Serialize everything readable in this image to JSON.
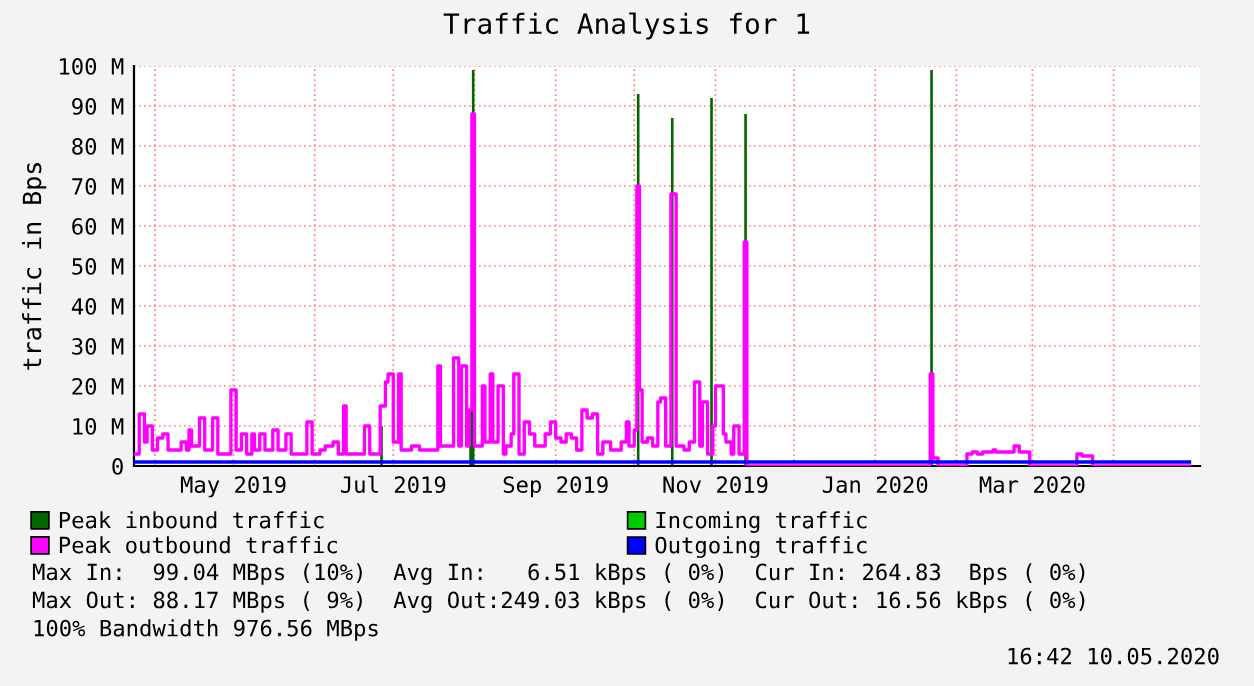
{
  "chart_data": {
    "type": "step",
    "title": "Traffic Analysis for 1",
    "ylabel": "traffic in Bps",
    "xlim": [
      "2019-03-24",
      "2020-05-04"
    ],
    "xticks": [
      {
        "value": "2019-04-01",
        "label": null
      },
      {
        "value": "2019-05-01",
        "label": "May 2019"
      },
      {
        "value": "2019-06-01",
        "label": null
      },
      {
        "value": "2019-07-01",
        "label": "Jul 2019"
      },
      {
        "value": "2019-08-01",
        "label": null
      },
      {
        "value": "2019-09-01",
        "label": "Sep 2019"
      },
      {
        "value": "2019-10-01",
        "label": null
      },
      {
        "value": "2019-11-01",
        "label": "Nov 2019"
      },
      {
        "value": "2019-12-01",
        "label": null
      },
      {
        "value": "2020-01-01",
        "label": "Jan 2020"
      },
      {
        "value": "2020-02-01",
        "label": null
      },
      {
        "value": "2020-03-01",
        "label": "Mar 2020"
      },
      {
        "value": "2020-04-01",
        "label": null
      }
    ],
    "ylim": [
      0,
      100
    ],
    "yticks": [
      0,
      {
        "value": 10,
        "label": "10 M"
      },
      {
        "value": 20,
        "label": "20 M"
      },
      {
        "value": 30,
        "label": "30 M"
      },
      {
        "value": 40,
        "label": "40 M"
      },
      {
        "value": 50,
        "label": "50 M"
      },
      {
        "value": 60,
        "label": "60 M"
      },
      {
        "value": 70,
        "label": "70 M"
      },
      {
        "value": 80,
        "label": "80 M"
      },
      {
        "value": 90,
        "label": "90 M"
      },
      {
        "value": 100,
        "label": "100 M"
      }
    ],
    "grid": true,
    "legend": "bottom",
    "series": [
      {
        "name": "Peak inbound traffic",
        "type": "area",
        "color": "#006600",
        "x": [
          "2019-03-24",
          "2019-06-26",
          "2019-06-27",
          "2019-07-30",
          "2019-07-31",
          "2019-08-01",
          "2019-10-02",
          "2019-10-03",
          "2019-10-15",
          "2019-10-16",
          "2019-10-30",
          "2019-10-31",
          "2019-11-12",
          "2019-11-13",
          "2020-01-22",
          "2020-01-23",
          "2020-04-30"
        ],
        "values": [
          0,
          10,
          0,
          14,
          99,
          0,
          93,
          0,
          87,
          0,
          92,
          0,
          88,
          0,
          99,
          0,
          0
        ]
      },
      {
        "name": "Incoming traffic",
        "type": "area",
        "color": "#00cc00"
      },
      {
        "name": "Peak outbound traffic",
        "type": "step",
        "color": "#ff00ff",
        "x": [
          "2019-03-24",
          "2019-03-26",
          "2019-03-28",
          "2019-03-29",
          "2019-03-31",
          "2019-04-02",
          "2019-04-04",
          "2019-04-06",
          "2019-04-11",
          "2019-04-13",
          "2019-04-14",
          "2019-04-15",
          "2019-04-18",
          "2019-04-20",
          "2019-04-23",
          "2019-04-25",
          "2019-04-30",
          "2019-05-02",
          "2019-05-04",
          "2019-05-06",
          "2019-05-08",
          "2019-05-09",
          "2019-05-11",
          "2019-05-13",
          "2019-05-16",
          "2019-05-18",
          "2019-05-21",
          "2019-05-23",
          "2019-05-29",
          "2019-05-31",
          "2019-06-03",
          "2019-06-05",
          "2019-06-08",
          "2019-06-10",
          "2019-06-12",
          "2019-06-13",
          "2019-06-20",
          "2019-06-22",
          "2019-06-26",
          "2019-06-28",
          "2019-06-29",
          "2019-07-01",
          "2019-07-03",
          "2019-07-04",
          "2019-07-08",
          "2019-07-11",
          "2019-07-18",
          "2019-07-19",
          "2019-07-24",
          "2019-07-26",
          "2019-07-27",
          "2019-07-29",
          "2019-07-30",
          "2019-07-31",
          "2019-08-01",
          "2019-08-04",
          "2019-08-05",
          "2019-08-07",
          "2019-08-08",
          "2019-08-10",
          "2019-08-12",
          "2019-08-13",
          "2019-08-15",
          "2019-08-16",
          "2019-08-18",
          "2019-08-20",
          "2019-08-22",
          "2019-08-24",
          "2019-08-28",
          "2019-08-30",
          "2019-09-01",
          "2019-09-03",
          "2019-09-05",
          "2019-09-07",
          "2019-09-09",
          "2019-09-11",
          "2019-09-13",
          "2019-09-15",
          "2019-09-17",
          "2019-09-19",
          "2019-09-22",
          "2019-09-26",
          "2019-09-28",
          "2019-09-29",
          "2019-10-01",
          "2019-10-02",
          "2019-10-03",
          "2019-10-04",
          "2019-10-06",
          "2019-10-08",
          "2019-10-10",
          "2019-10-11",
          "2019-10-13",
          "2019-10-15",
          "2019-10-17",
          "2019-10-20",
          "2019-10-22",
          "2019-10-24",
          "2019-10-26",
          "2019-10-27",
          "2019-10-29",
          "2019-10-31",
          "2019-11-01",
          "2019-11-04",
          "2019-11-05",
          "2019-11-07",
          "2019-11-08",
          "2019-11-10",
          "2019-11-12",
          "2019-11-13",
          "2020-01-22",
          "2020-01-23",
          "2020-01-25",
          "2020-02-05",
          "2020-02-07",
          "2020-02-09",
          "2020-02-11",
          "2020-02-15",
          "2020-02-16",
          "2020-02-23",
          "2020-02-25",
          "2020-02-29",
          "2020-03-18",
          "2020-03-20",
          "2020-03-24",
          "2020-04-30"
        ],
        "values": [
          3,
          13,
          6,
          10,
          4,
          7,
          8,
          4,
          6,
          4,
          9,
          5,
          12,
          4,
          12,
          3,
          19,
          4,
          8,
          3,
          8,
          4,
          8,
          4,
          9,
          4,
          8,
          3,
          11,
          3,
          4,
          5,
          6,
          3,
          15,
          3,
          10,
          3,
          15,
          21,
          23,
          6,
          23,
          4,
          5,
          4,
          25,
          5,
          27,
          5,
          25,
          5,
          14,
          88,
          5,
          20,
          6,
          23,
          6,
          20,
          3,
          5,
          8,
          23,
          3,
          11,
          8,
          5,
          8,
          11,
          7,
          6,
          8,
          7,
          4,
          14,
          12,
          13,
          3,
          6,
          4,
          6,
          11,
          5,
          9,
          70,
          19,
          6,
          7,
          5,
          16,
          17,
          5,
          68,
          5,
          4,
          6,
          21,
          5,
          16,
          3,
          10,
          20,
          8,
          6,
          3,
          10,
          3,
          56,
          0,
          23,
          2,
          0,
          3,
          3.5,
          3,
          3.5,
          4,
          3.5,
          5,
          3.5,
          0,
          3,
          2.5,
          0,
          0
        ]
      },
      {
        "name": "Outgoing traffic",
        "type": "step",
        "color": "#0000ff",
        "x": [
          "2019-03-24",
          "2020-04-30"
        ],
        "values": [
          1,
          1
        ]
      }
    ],
    "annotations": [
      "Max In:  99.04 MBps (10%)  Avg In:   6.51 kBps ( 0%)  Cur In: 264.83  Bps ( 0%)",
      "Max Out: 88.17 MBps ( 9%)  Avg Out:249.03 kBps ( 0%)  Cur Out: 16.56 kBps ( 0%)",
      "100% Bandwidth 976.56 MBps",
      "16:42 10.05.2020"
    ]
  }
}
